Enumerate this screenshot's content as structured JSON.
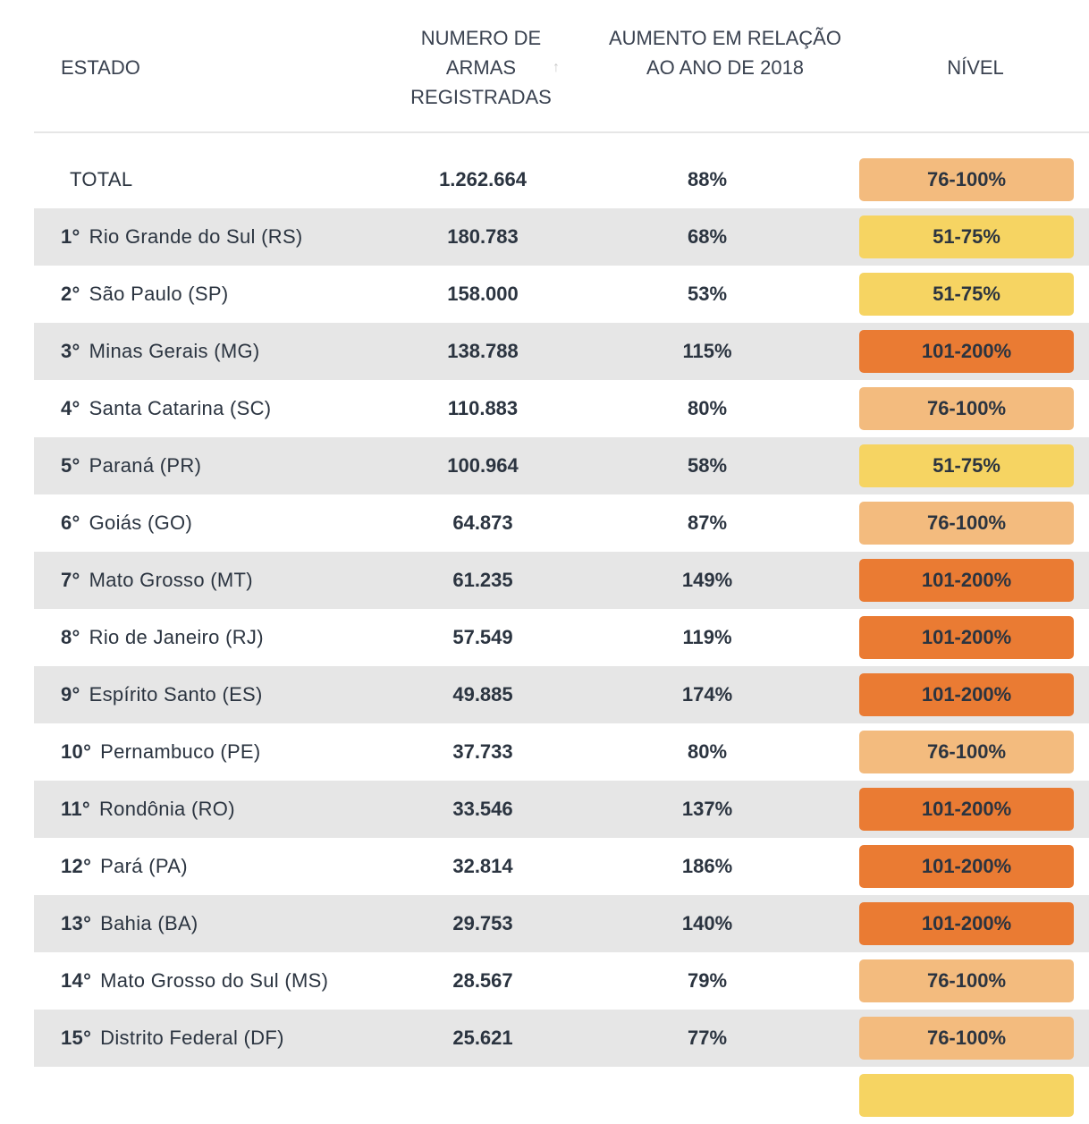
{
  "header": {
    "estado": "ESTADO",
    "numero": "NUMERO DE ARMAS REGISTRADAS",
    "sort_icon": "arrow-up-icon",
    "aumento": "AUMENTO EM RELAÇÃO AO ANO DE 2018",
    "nivel": "NÍVEL"
  },
  "level_colors": {
    "51-75%": "#f6d462",
    "76-100%": "#f3bb7e",
    "101-200%": "#ea7b33"
  },
  "total": {
    "label": "TOTAL",
    "numero": "1.262.664",
    "aumento": "88%",
    "nivel": "76-100%"
  },
  "rows": [
    {
      "rank": "1°",
      "estado": "Rio Grande do Sul (RS)",
      "numero": "180.783",
      "aumento": "68%",
      "nivel": "51-75%"
    },
    {
      "rank": "2°",
      "estado": "São Paulo (SP)",
      "numero": "158.000",
      "aumento": "53%",
      "nivel": "51-75%"
    },
    {
      "rank": "3°",
      "estado": "Minas Gerais (MG)",
      "numero": "138.788",
      "aumento": "115%",
      "nivel": "101-200%"
    },
    {
      "rank": "4°",
      "estado": "Santa Catarina (SC)",
      "numero": "110.883",
      "aumento": "80%",
      "nivel": "76-100%"
    },
    {
      "rank": "5°",
      "estado": "Paraná (PR)",
      "numero": "100.964",
      "aumento": "58%",
      "nivel": "51-75%"
    },
    {
      "rank": "6°",
      "estado": "Goiás (GO)",
      "numero": "64.873",
      "aumento": "87%",
      "nivel": "76-100%"
    },
    {
      "rank": "7°",
      "estado": "Mato Grosso (MT)",
      "numero": "61.235",
      "aumento": "149%",
      "nivel": "101-200%"
    },
    {
      "rank": "8°",
      "estado": "Rio de Janeiro (RJ)",
      "numero": "57.549",
      "aumento": "119%",
      "nivel": "101-200%"
    },
    {
      "rank": "9°",
      "estado": "Espírito Santo (ES)",
      "numero": "49.885",
      "aumento": "174%",
      "nivel": "101-200%"
    },
    {
      "rank": "10°",
      "estado": "Pernambuco (PE)",
      "numero": "37.733",
      "aumento": "80%",
      "nivel": "76-100%"
    },
    {
      "rank": "11°",
      "estado": "Rondônia (RO)",
      "numero": "33.546",
      "aumento": "137%",
      "nivel": "101-200%"
    },
    {
      "rank": "12°",
      "estado": "Pará (PA)",
      "numero": "32.814",
      "aumento": "186%",
      "nivel": "101-200%"
    },
    {
      "rank": "13°",
      "estado": "Bahia (BA)",
      "numero": "29.753",
      "aumento": "140%",
      "nivel": "101-200%"
    },
    {
      "rank": "14°",
      "estado": "Mato Grosso do Sul (MS)",
      "numero": "28.567",
      "aumento": "79%",
      "nivel": "76-100%"
    },
    {
      "rank": "15°",
      "estado": "Distrito Federal (DF)",
      "numero": "25.621",
      "aumento": "77%",
      "nivel": "76-100%"
    }
  ]
}
